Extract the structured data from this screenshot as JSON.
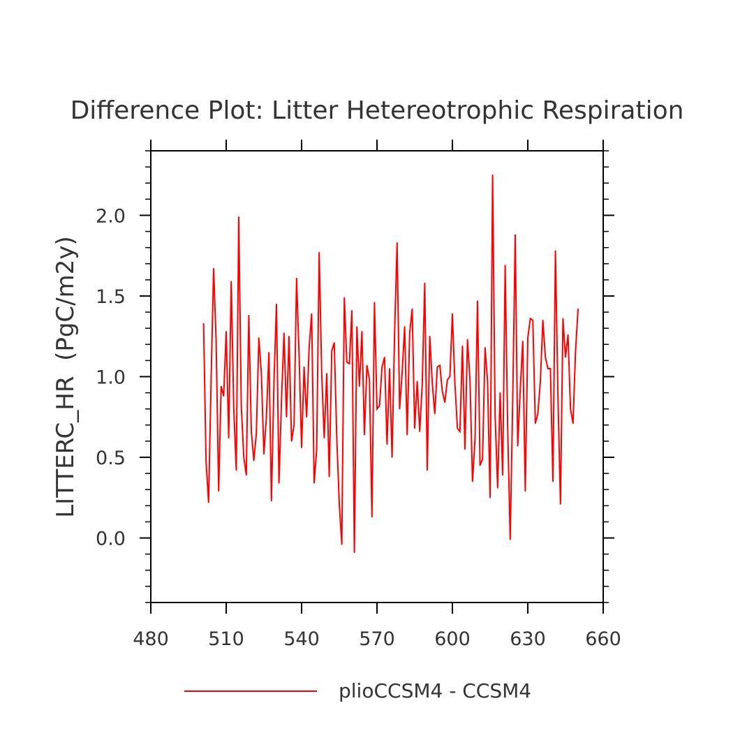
{
  "chart_data": {
    "type": "line",
    "title": "Difference Plot: Litter Hetereotrophic Respiration",
    "xlabel": "",
    "ylabel": "LITTERC_HR  (PgC/m2y)",
    "xlim": [
      480,
      660
    ],
    "ylim": [
      -0.4,
      2.4
    ],
    "xticks": [
      480,
      510,
      540,
      570,
      600,
      630,
      660
    ],
    "xtick_labels": [
      "480",
      "510",
      "540",
      "570",
      "600",
      "630",
      "660"
    ],
    "yticks": [
      0.0,
      0.5,
      1.0,
      1.5,
      2.0
    ],
    "ytick_labels": [
      "0.0",
      "0.5",
      "1.0",
      "1.5",
      "2.0"
    ],
    "legend_position": "bottom-center",
    "series": [
      {
        "name": "plioCCSM4 - CCSM4",
        "color": "#ff0000",
        "x": [
          501,
          502,
          503,
          504,
          505,
          506,
          507,
          508,
          509,
          510,
          511,
          512,
          513,
          514,
          515,
          516,
          517,
          518,
          519,
          520,
          521,
          522,
          523,
          524,
          525,
          526,
          527,
          528,
          529,
          530,
          531,
          532,
          533,
          534,
          535,
          536,
          537,
          538,
          539,
          540,
          541,
          542,
          543,
          544,
          545,
          546,
          547,
          548,
          549,
          550,
          551,
          552,
          553,
          554,
          555,
          556,
          557,
          558,
          559,
          560,
          561,
          562,
          563,
          564,
          565,
          566,
          567,
          568,
          569,
          570,
          571,
          572,
          573,
          574,
          575,
          576,
          577,
          578,
          579,
          580,
          581,
          582,
          583,
          584,
          585,
          586,
          587,
          588,
          589,
          590,
          591,
          592,
          593,
          594,
          595,
          596,
          597,
          598,
          599,
          600,
          601,
          602,
          603,
          604,
          605,
          606,
          607,
          608,
          609,
          610,
          611,
          612,
          613,
          614,
          615,
          616,
          617,
          618,
          619,
          620,
          621,
          622,
          623,
          624,
          625,
          626,
          627,
          628,
          629,
          630,
          631,
          632,
          633,
          634,
          635,
          636,
          637,
          638,
          639,
          640,
          641,
          642,
          643,
          644,
          645,
          646,
          647,
          648,
          649,
          650
        ],
        "values": [
          1.33,
          0.47,
          0.22,
          0.98,
          1.67,
          1.22,
          0.29,
          0.94,
          0.88,
          1.28,
          0.62,
          1.59,
          0.81,
          0.42,
          1.99,
          0.82,
          0.5,
          0.39,
          1.38,
          0.66,
          0.48,
          0.65,
          1.24,
          1.02,
          0.52,
          0.75,
          1.15,
          0.23,
          0.96,
          1.45,
          0.34,
          0.85,
          1.27,
          0.75,
          1.25,
          0.6,
          0.7,
          1.61,
          1.14,
          0.56,
          1.06,
          0.75,
          1.18,
          1.39,
          0.34,
          0.55,
          1.77,
          1.02,
          0.62,
          1.02,
          0.38,
          1.16,
          1.21,
          0.62,
          0.21,
          -0.04,
          1.49,
          1.09,
          1.08,
          1.41,
          -0.09,
          1.31,
          0.94,
          1.28,
          0.64,
          1.07,
          0.98,
          0.13,
          1.46,
          0.8,
          0.82,
          1.06,
          1.12,
          0.58,
          1.05,
          0.5,
          1.27,
          1.83,
          0.8,
          1.02,
          1.31,
          0.64,
          1.27,
          1.42,
          0.68,
          0.97,
          0.66,
          0.95,
          1.58,
          0.42,
          1.25,
          0.96,
          0.77,
          1.06,
          1.07,
          0.91,
          0.84,
          0.98,
          1.0,
          1.39,
          0.96,
          0.68,
          0.66,
          1.19,
          0.55,
          1.23,
          0.98,
          0.35,
          0.61,
          1.47,
          0.45,
          0.49,
          1.18,
          0.97,
          0.25,
          2.25,
          0.76,
          0.31,
          0.9,
          0.39,
          1.69,
          0.68,
          -0.01,
          0.85,
          1.88,
          0.57,
          0.92,
          1.22,
          0.29,
          1.24,
          1.36,
          1.35,
          0.71,
          0.77,
          0.97,
          1.35,
          1.12,
          1.05,
          1.05,
          0.35,
          1.78,
          0.88,
          0.21,
          1.36,
          1.12,
          1.26,
          0.8,
          0.71,
          1.16,
          1.42
        ]
      }
    ]
  }
}
